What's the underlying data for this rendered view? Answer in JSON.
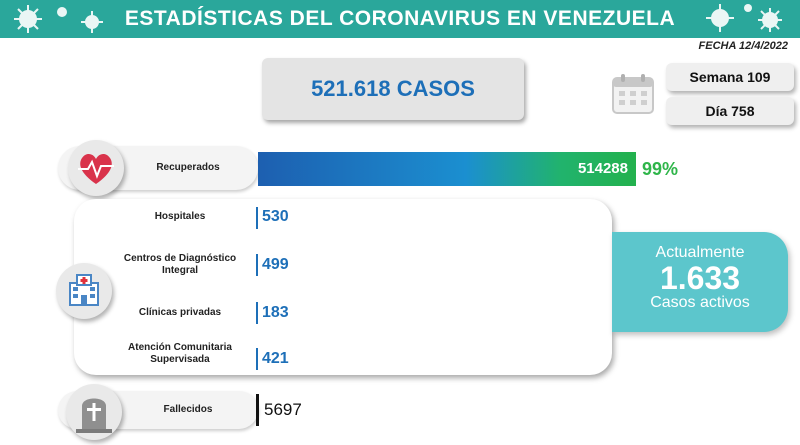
{
  "header": {
    "title": "ESTADÍSTICAS DEL CORONAVIRUS EN VENEZUELA",
    "date": "FECHA 12/4/2022"
  },
  "totals": {
    "cases": "521.618 CASOS",
    "week": "Semana 109",
    "day": "Día 758"
  },
  "recovered": {
    "label": "Recuperados",
    "value": "514288",
    "percent": "99%"
  },
  "locations": [
    {
      "label": "Hospitales",
      "value": "530"
    },
    {
      "label": "Centros de Diagnóstico Integral",
      "value": "499"
    },
    {
      "label": "Clínicas privadas",
      "value": "183"
    },
    {
      "label": "Atención Comunitaria Supervisada",
      "value": "421"
    }
  ],
  "active": {
    "line1": "Actualmente",
    "value": "1.633",
    "line2": "Casos activos"
  },
  "deaths": {
    "label": "Fallecidos",
    "value": "5697"
  },
  "chart_data": {
    "type": "table",
    "title": "ESTADÍSTICAS DEL CORONAVIRUS EN VENEZUELA",
    "date": "12/4/2022",
    "total_cases": 521618,
    "recovered": 514288,
    "recovered_percent": 99,
    "active_cases": 1633,
    "deaths": 5697,
    "active_by_location": {
      "categories": [
        "Hospitales",
        "Centros de Diagnóstico Integral",
        "Clínicas privadas",
        "Atención Comunitaria Supervisada"
      ],
      "values": [
        530,
        499,
        183,
        421
      ]
    }
  },
  "colors": {
    "teal": "#2aa79b",
    "blue": "#1d6fb8",
    "green": "#2fb54a",
    "active_bg": "#5cc6cc"
  },
  "icons": [
    "virus-icon",
    "calendar-icon",
    "heart-icon",
    "hospital-icon",
    "tombstone-icon"
  ]
}
